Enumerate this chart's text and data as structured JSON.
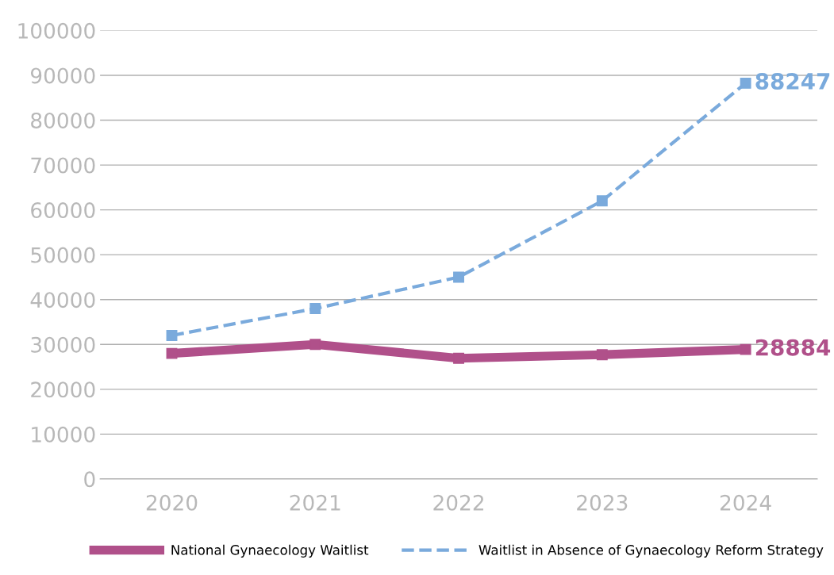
{
  "chart_data": {
    "type": "line",
    "categories": [
      "2020",
      "2021",
      "2022",
      "2023",
      "2024"
    ],
    "series": [
      {
        "name": "National Gynaecology Waitlist",
        "color": "#b0508a",
        "values": [
          28000,
          30000,
          26900,
          27700,
          28884
        ],
        "value_labels": [
          null,
          null,
          null,
          null,
          "28884"
        ],
        "line_style": "solid",
        "marker": "square"
      },
      {
        "name": "Waitlist in Absence of Gynaecology Reform Strategy",
        "color": "#7aaadc",
        "values": [
          32000,
          38000,
          45000,
          62000,
          88247
        ],
        "value_labels": [
          null,
          null,
          null,
          null,
          "88247"
        ],
        "line_style": "dashed",
        "marker": "square"
      }
    ],
    "ylim": [
      0,
      100000
    ],
    "yticks": [
      0,
      10000,
      20000,
      30000,
      40000,
      50000,
      60000,
      70000,
      80000,
      90000,
      100000
    ],
    "grid": "y",
    "legend": "bottom"
  }
}
